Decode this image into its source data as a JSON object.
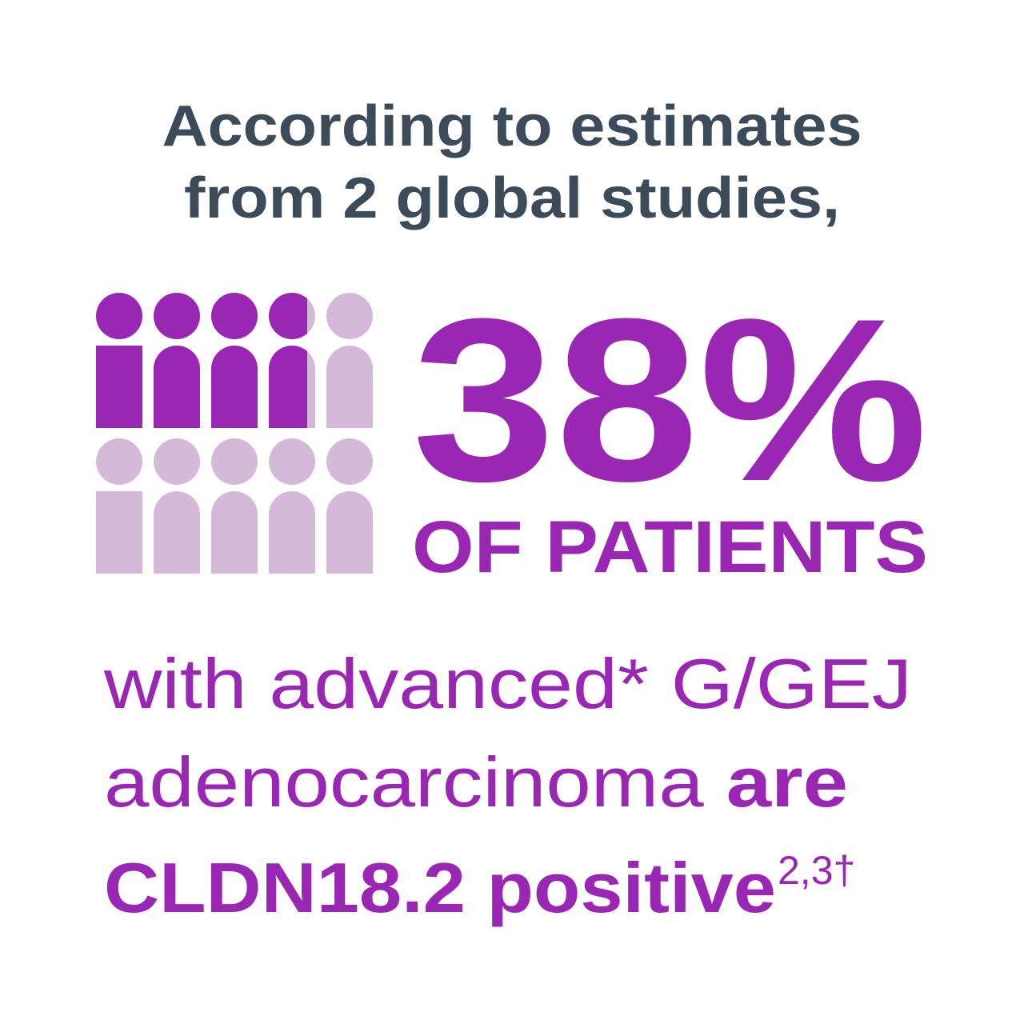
{
  "header": {
    "lines": [
      "According to estimates",
      "from 2 global studies,"
    ]
  },
  "stat": {
    "value": "38%",
    "label": "OF PATIENTS"
  },
  "body": {
    "line1": "with advanced* G/GEJ",
    "line2": {
      "regular": "adenocarcinoma ",
      "bold": "are"
    },
    "line3": {
      "bold": "CLDN18.2 positive",
      "superscript": "2,3†"
    }
  }
}
